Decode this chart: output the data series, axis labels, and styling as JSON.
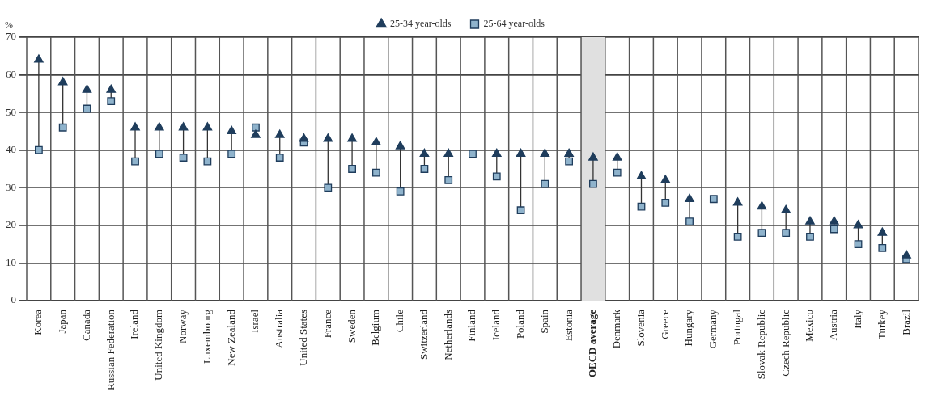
{
  "chart_data": {
    "type": "scatter",
    "ylabel": "%",
    "categories": [
      "Korea",
      "Japan",
      "Canada",
      "Russian Federation",
      "Ireland",
      "United Kingdom",
      "Norway",
      "Luxembourg",
      "New Zealand",
      "Israel",
      "Australia",
      "United States",
      "France",
      "Sweden",
      "Belgium",
      "Chile",
      "Switzerland",
      "Netherlands",
      "Finland",
      "Iceland",
      "Poland",
      "Spain",
      "Estonia",
      "OECD average",
      "Denmark",
      "Slovenia",
      "Greece",
      "Hungary",
      "Germany",
      "Portugal",
      "Slovak Republic",
      "Czech Republic",
      "Mexico",
      "Austria",
      "Italy",
      "Turkey",
      "Brazil"
    ],
    "series": [
      {
        "name": "25-34 year-olds",
        "color": "#1f3d5c",
        "marker": "triangle",
        "values": [
          64,
          58,
          56,
          56,
          46,
          46,
          46,
          46,
          45,
          44,
          44,
          43,
          43,
          43,
          42,
          41,
          39,
          39,
          null,
          39,
          39,
          39,
          39,
          38,
          38,
          33,
          32,
          27,
          null,
          26,
          25,
          24,
          21,
          21,
          20,
          18,
          12
        ]
      },
      {
        "name": "25-64 year-olds",
        "color": "#8fb3cc",
        "marker": "square",
        "values": [
          40,
          46,
          51,
          53,
          37,
          39,
          38,
          37,
          39,
          46,
          38,
          42,
          30,
          35,
          34,
          29,
          35,
          32,
          39,
          33,
          24,
          31,
          37,
          31,
          34,
          25,
          26,
          21,
          27,
          17,
          18,
          18,
          17,
          19,
          15,
          14,
          11
        ]
      }
    ],
    "ylim": [
      0,
      70
    ],
    "yticks": [
      0,
      10,
      20,
      30,
      40,
      50,
      60,
      70
    ],
    "grid": true,
    "legend": "top",
    "bands": [
      {
        "axis": "x",
        "from": "OECD average",
        "to": "OECD average",
        "color": "#e0e0e0"
      }
    ]
  }
}
